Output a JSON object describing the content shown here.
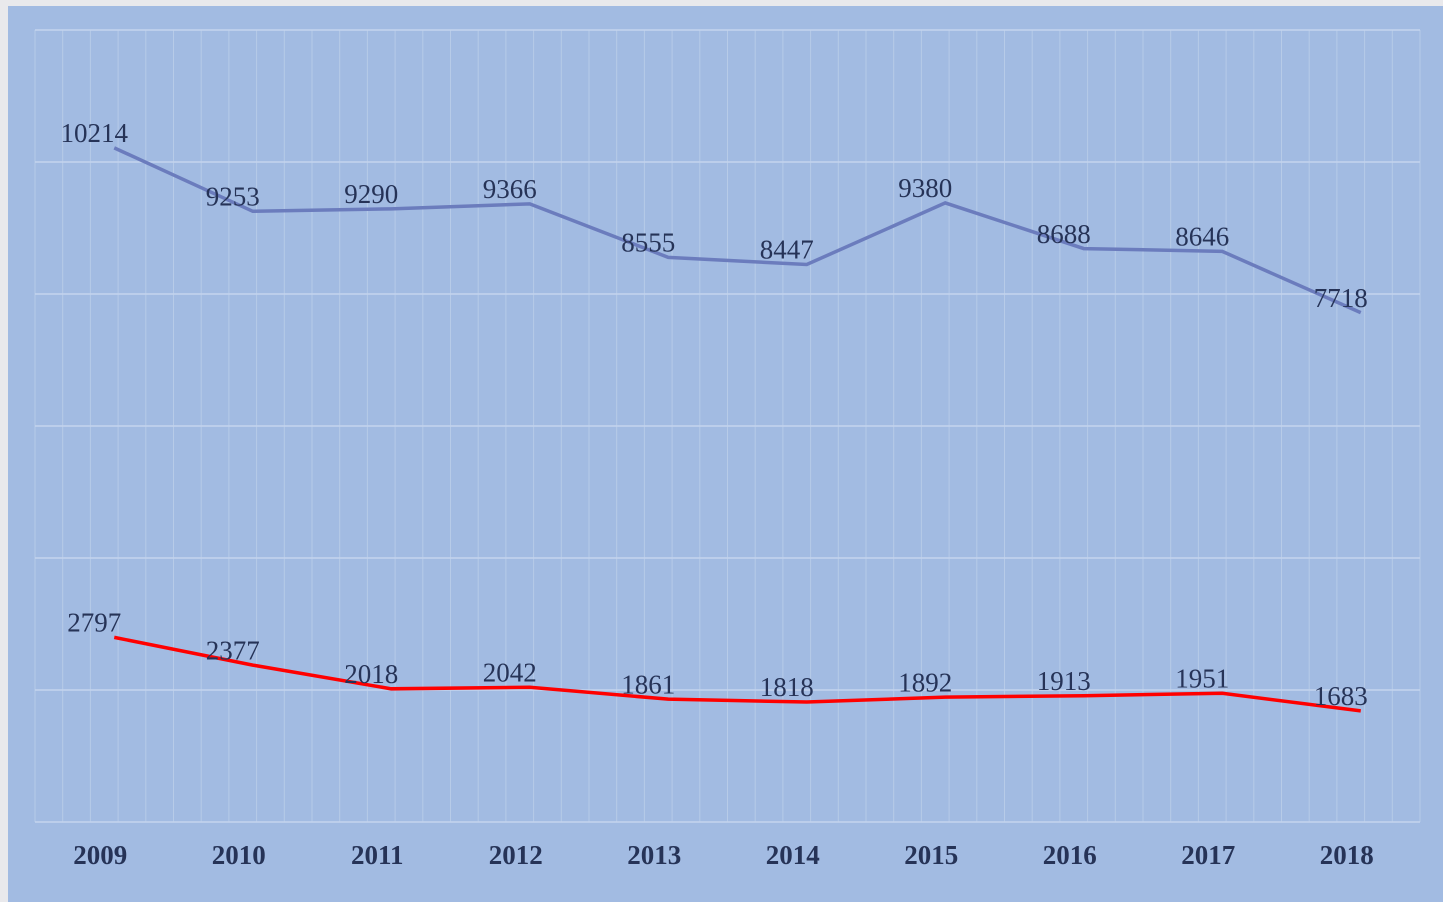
{
  "chart_data": {
    "type": "line",
    "categories": [
      "2009",
      "2010",
      "2011",
      "2012",
      "2013",
      "2014",
      "2015",
      "2016",
      "2017",
      "2018"
    ],
    "series": [
      {
        "color": "#6b7cbd",
        "values": [
          10214,
          9253,
          9290,
          9366,
          8555,
          8447,
          9380,
          8688,
          8646,
          7718
        ]
      },
      {
        "color": "#ff0000",
        "values": [
          2797,
          2377,
          2018,
          2042,
          1861,
          1818,
          1892,
          1913,
          1951,
          1683
        ]
      }
    ],
    "ylim": [
      0,
      12000
    ],
    "yticks": [
      0,
      2000,
      4000,
      6000,
      8000,
      10000,
      12000
    ],
    "grid": true
  }
}
